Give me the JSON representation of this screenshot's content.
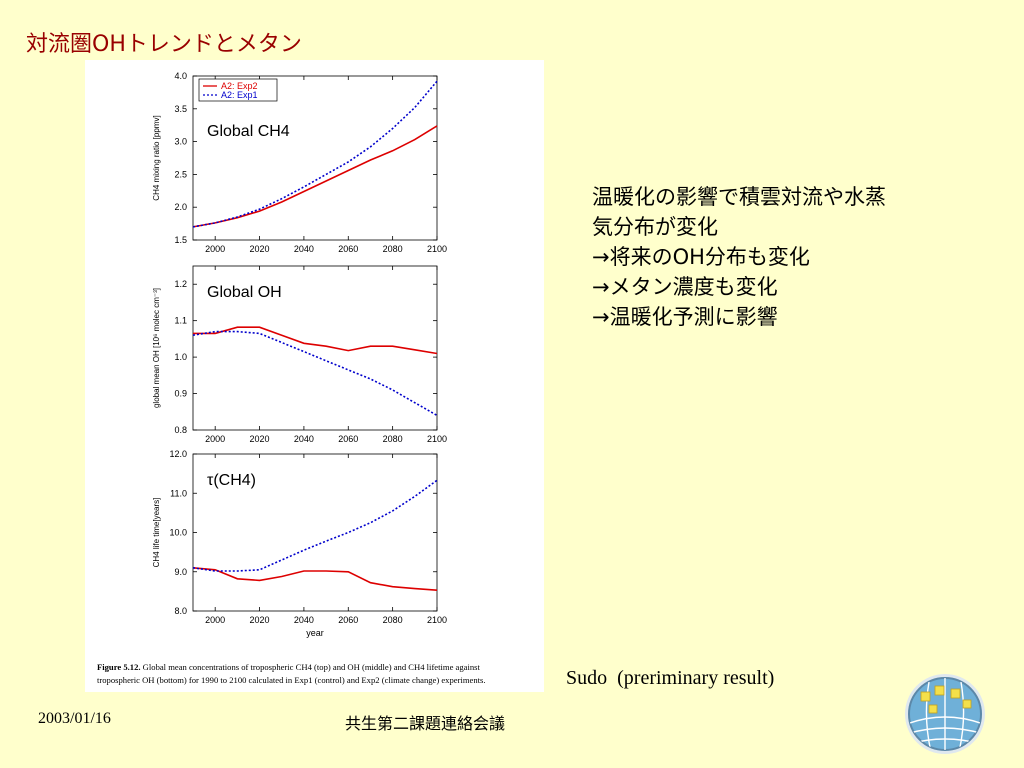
{
  "slide": {
    "title": "対流圏OHトレンドとメタン",
    "bullets": [
      "温暖化の影響で積雲対流や水蒸",
      "気分布が変化",
      "→将来のOH分布も変化",
      "→メタン濃度も変化",
      "→温暖化予測に影響"
    ],
    "note": "Sudo  (preriminary result)",
    "footer_date": "2003/01/16",
    "footer_title": "共生第二課題連絡会議",
    "logo_icon": "globe-logo-icon"
  },
  "figure_caption": {
    "label": "Figure 5.12.",
    "line1": "Global mean concentrations of tropospheric CH4 (top) and OH (middle) and CH4 lifetime against",
    "line2": "tropospheric OH (bottom) for 1990 to 2100 calculated in Exp1 (control) and Exp2 (climate change) experiments."
  },
  "colors": {
    "exp2": "#dd0000",
    "exp1": "#0000cc",
    "title": "#990000",
    "background": "#ffffcc"
  },
  "chart_data": [
    {
      "type": "line",
      "annotation": "Global CH4",
      "ylabel": "CH4 mixing ratio [ppmv]",
      "xlabel": "",
      "xlim": [
        1990,
        2100
      ],
      "ylim": [
        1.5,
        4.0
      ],
      "xticks": [
        2000,
        2020,
        2040,
        2060,
        2080,
        2100
      ],
      "yticks": [
        1.5,
        2.0,
        2.5,
        3.0,
        3.5,
        4.0
      ],
      "legend": {
        "placement": "top-left",
        "entries": [
          "A2: Exp2",
          "A2: Exp1"
        ]
      },
      "series": [
        {
          "name": "A2: Exp2",
          "style": "solid",
          "color": "#dd0000",
          "x": [
            1990,
            2000,
            2010,
            2020,
            2030,
            2040,
            2050,
            2060,
            2070,
            2080,
            2090,
            2100
          ],
          "y": [
            1.7,
            1.76,
            1.84,
            1.94,
            2.08,
            2.24,
            2.4,
            2.56,
            2.72,
            2.86,
            3.03,
            3.24
          ]
        },
        {
          "name": "A2: Exp1",
          "style": "dotted",
          "color": "#0000cc",
          "x": [
            1990,
            2000,
            2010,
            2020,
            2030,
            2040,
            2050,
            2060,
            2070,
            2080,
            2090,
            2100
          ],
          "y": [
            1.7,
            1.76,
            1.85,
            1.97,
            2.13,
            2.31,
            2.5,
            2.69,
            2.92,
            3.2,
            3.52,
            3.92
          ]
        }
      ]
    },
    {
      "type": "line",
      "annotation": "Global OH",
      "ylabel": "global mean OH [10⁶ molec cm⁻³]",
      "xlabel": "",
      "xlim": [
        1990,
        2100
      ],
      "ylim": [
        0.8,
        1.25
      ],
      "xticks": [
        2000,
        2020,
        2040,
        2060,
        2080,
        2100
      ],
      "yticks": [
        0.8,
        0.9,
        1.0,
        1.1,
        1.2
      ],
      "series": [
        {
          "name": "A2: Exp2",
          "style": "solid",
          "color": "#dd0000",
          "x": [
            1990,
            2000,
            2010,
            2020,
            2030,
            2040,
            2050,
            2060,
            2070,
            2080,
            2090,
            2100
          ],
          "y": [
            1.065,
            1.065,
            1.082,
            1.082,
            1.06,
            1.038,
            1.03,
            1.018,
            1.03,
            1.03,
            1.02,
            1.01
          ]
        },
        {
          "name": "A2: Exp1",
          "style": "dotted",
          "color": "#0000cc",
          "x": [
            1990,
            2000,
            2010,
            2020,
            2030,
            2040,
            2050,
            2060,
            2070,
            2080,
            2090,
            2100
          ],
          "y": [
            1.06,
            1.07,
            1.07,
            1.065,
            1.04,
            1.015,
            0.99,
            0.965,
            0.94,
            0.91,
            0.875,
            0.84
          ]
        }
      ]
    },
    {
      "type": "line",
      "annotation": "τ(CH4)",
      "ylabel": "CH4 life time[years]",
      "xlabel": "year",
      "xlim": [
        1990,
        2100
      ],
      "ylim": [
        8.0,
        12.0
      ],
      "xticks": [
        2000,
        2020,
        2040,
        2060,
        2080,
        2100
      ],
      "yticks": [
        8.0,
        9.0,
        10.0,
        11.0,
        12.0
      ],
      "series": [
        {
          "name": "A2: Exp2",
          "style": "solid",
          "color": "#dd0000",
          "x": [
            1990,
            2000,
            2010,
            2020,
            2030,
            2040,
            2050,
            2060,
            2070,
            2080,
            2090,
            2100
          ],
          "y": [
            9.1,
            9.05,
            8.82,
            8.78,
            8.88,
            9.02,
            9.02,
            9.0,
            8.72,
            8.62,
            8.57,
            8.53
          ]
        },
        {
          "name": "A2: Exp1",
          "style": "dotted",
          "color": "#0000cc",
          "x": [
            1990,
            2000,
            2010,
            2020,
            2030,
            2040,
            2050,
            2060,
            2070,
            2080,
            2090,
            2100
          ],
          "y": [
            9.1,
            9.02,
            9.02,
            9.05,
            9.3,
            9.55,
            9.78,
            10.0,
            10.25,
            10.55,
            10.92,
            11.33
          ]
        }
      ]
    }
  ]
}
